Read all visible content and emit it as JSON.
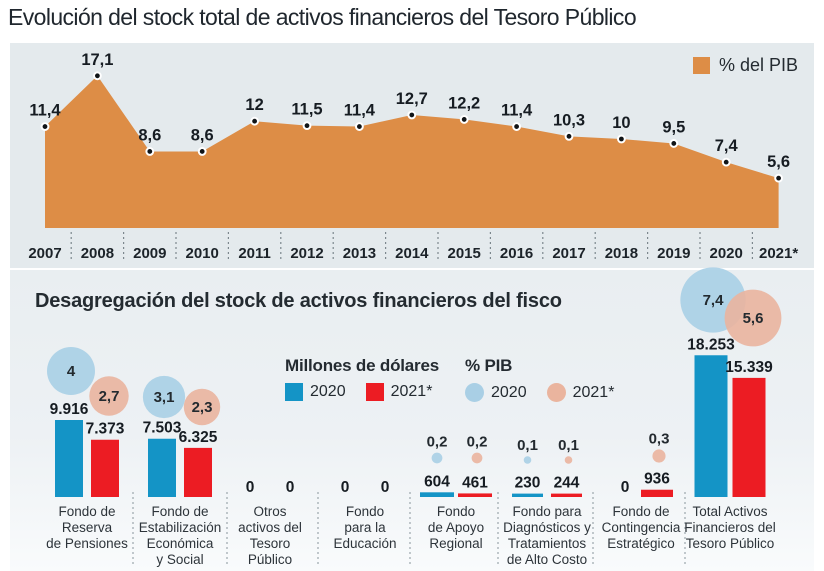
{
  "title": "Evolución del stock total de activos financieros del Tesoro Público",
  "subtitle": "Desagregación del stock de activos financieros del fisco",
  "colors": {
    "area": "#DD8D46",
    "panel_top_bg": "#E4EAED",
    "bar_2020": "#1494C6",
    "bar_2021": "#EC1C23",
    "bubble_2020": "#A9CFE5",
    "bubble_2021": "#EAB49E",
    "text_dark": "#1C2228"
  },
  "chart_data": [
    {
      "type": "area",
      "title": "Evolución del stock total de activos financieros del Tesoro Público",
      "legend_label": "% del PIB",
      "legend_position": "top-right",
      "unit": "% del PIB",
      "grid": false,
      "ylim": [
        0,
        18
      ],
      "x": [
        "2007",
        "2008",
        "2009",
        "2010",
        "2011",
        "2012",
        "2013",
        "2014",
        "2015",
        "2016",
        "2017",
        "2018",
        "2019",
        "2020",
        "2021*"
      ],
      "values": [
        11.4,
        17.1,
        8.6,
        8.6,
        12,
        11.5,
        11.4,
        12.7,
        12.2,
        11.4,
        10.3,
        10,
        9.5,
        7.4,
        5.6
      ],
      "value_labels": [
        "11,4",
        "17,1",
        "8,6",
        "8,6",
        "12",
        "11,5",
        "11,4",
        "12,7",
        "12,2",
        "11,4",
        "10,3",
        "10",
        "9,5",
        "7,4",
        "5,6"
      ]
    },
    {
      "type": "bar",
      "title": "Desagregación del stock de activos financieros del fisco",
      "legends": {
        "usd": {
          "title": "Millones de dólares",
          "items": [
            "2020",
            "2021*"
          ]
        },
        "pib": {
          "title": "% PIB",
          "items": [
            "2020",
            "2021*"
          ]
        }
      },
      "categories": [
        "Fondo de\nReserva\nde Pensiones",
        "Fondo de\nEstabilización\nEconómica\ny Social",
        "Otros\nactivos del\nTesoro\nPúblico",
        "Fondo\npara la\nEducación",
        "Fondo\nde Apoyo\nRegional",
        "Fondo para\nDiagnósticos y\nTratamientos\nde Alto Costo",
        "Fondo de\nContingencia\nEstratégico",
        "Total Activos\nFinancieros del\nTesoro Público"
      ],
      "series": [
        {
          "name": "2020 — millones de dólares",
          "values": [
            9916,
            7503,
            0,
            0,
            604,
            230,
            0,
            18253
          ],
          "displays": [
            "9.916",
            "7.503",
            "0",
            "0",
            "604",
            "230",
            "0",
            "18.253"
          ]
        },
        {
          "name": "2021* — millones de dólares",
          "values": [
            7373,
            6325,
            0,
            0,
            461,
            244,
            936,
            15339
          ],
          "displays": [
            "7.373",
            "6.325",
            "0",
            "0",
            "461",
            "244",
            "936",
            "15.339"
          ]
        },
        {
          "name": "2020 — % PIB",
          "values": [
            4,
            3.1,
            null,
            null,
            0.2,
            0.1,
            null,
            7.4
          ],
          "displays": [
            "4",
            "3,1",
            null,
            null,
            "0,2",
            "0,1",
            null,
            "7,4"
          ]
        },
        {
          "name": "2021* — % PIB",
          "values": [
            2.7,
            2.3,
            null,
            null,
            0.2,
            0.1,
            0.3,
            5.6
          ],
          "displays": [
            "2,7",
            "2,3",
            null,
            null,
            "0,2",
            "0,1",
            "0,3",
            "5,6"
          ]
        }
      ]
    }
  ]
}
